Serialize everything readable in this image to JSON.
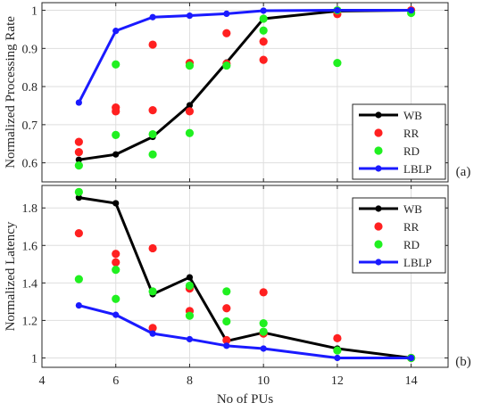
{
  "chart_data": [
    {
      "type": "line",
      "panel_label": "(a)",
      "xlabel": "",
      "ylabel": "Normalized Processing Rate",
      "xlim": [
        4,
        15
      ],
      "ylim": [
        0.55,
        1.02
      ],
      "xticks": [
        4,
        6,
        8,
        10,
        12,
        14
      ],
      "yticks": [
        0.6,
        0.7,
        0.8,
        0.9,
        1
      ],
      "ytick_labels": [
        "0.6",
        "0.7",
        "0.8",
        "0.9",
        "1"
      ],
      "show_xtick_labels": false,
      "grid": true,
      "legend_position": "lower-right",
      "series": [
        {
          "name": "WB",
          "style": "line-marker",
          "color": "#000000",
          "points": [
            [
              5,
              0.608
            ],
            [
              6,
              0.622
            ],
            [
              7,
              0.668
            ],
            [
              8,
              0.751
            ],
            [
              9,
              0.863
            ],
            [
              10,
              0.978
            ],
            [
              12,
              0.998
            ],
            [
              14,
              1.0
            ]
          ]
        },
        {
          "name": "RR",
          "style": "scatter",
          "color": "#ff2020",
          "points": [
            [
              5,
              0.655
            ],
            [
              5,
              0.628
            ],
            [
              6,
              0.745
            ],
            [
              6,
              0.735
            ],
            [
              7,
              0.91
            ],
            [
              7,
              0.738
            ],
            [
              8,
              0.862
            ],
            [
              8,
              0.735
            ],
            [
              9,
              0.94
            ],
            [
              9,
              0.86
            ],
            [
              10,
              0.918
            ],
            [
              10,
              0.87
            ],
            [
              12,
              0.99
            ],
            [
              14,
              1.0
            ]
          ]
        },
        {
          "name": "RD",
          "style": "scatter",
          "color": "#20f020",
          "points": [
            [
              5,
              0.593
            ],
            [
              6,
              0.858
            ],
            [
              6,
              0.673
            ],
            [
              7,
              0.675
            ],
            [
              7,
              0.622
            ],
            [
              8,
              0.855
            ],
            [
              8,
              0.678
            ],
            [
              9,
              0.855
            ],
            [
              10,
              0.978
            ],
            [
              10,
              0.947
            ],
            [
              12,
              0.862
            ],
            [
              12,
              1.0
            ],
            [
              14,
              0.993
            ]
          ]
        },
        {
          "name": "LBLP",
          "style": "line-marker",
          "color": "#1a1aff",
          "points": [
            [
              5,
              0.758
            ],
            [
              6,
              0.946
            ],
            [
              7,
              0.982
            ],
            [
              8,
              0.986
            ],
            [
              9,
              0.991
            ],
            [
              10,
              0.999
            ],
            [
              12,
              1.0
            ],
            [
              14,
              1.0
            ]
          ]
        }
      ]
    },
    {
      "type": "line",
      "panel_label": "(b)",
      "xlabel": "No of PUs",
      "ylabel": "Normalized Latency",
      "xlim": [
        4,
        15
      ],
      "ylim": [
        0.95,
        1.92
      ],
      "xticks": [
        4,
        6,
        8,
        10,
        12,
        14
      ],
      "xtick_labels": [
        "4",
        "6",
        "8",
        "10",
        "12",
        "14"
      ],
      "yticks": [
        1,
        1.2,
        1.4,
        1.6,
        1.8
      ],
      "ytick_labels": [
        "1",
        "1.2",
        "1.4",
        "1.6",
        "1.8"
      ],
      "show_xtick_labels": true,
      "grid": true,
      "legend_position": "upper-right",
      "series": [
        {
          "name": "WB",
          "style": "line-marker",
          "color": "#000000",
          "points": [
            [
              5,
              1.855
            ],
            [
              6,
              1.825
            ],
            [
              7,
              1.34
            ],
            [
              8,
              1.43
            ],
            [
              9,
              1.09
            ],
            [
              10,
              1.135
            ],
            [
              12,
              1.05
            ],
            [
              14,
              1.0
            ]
          ]
        },
        {
          "name": "RR",
          "style": "scatter",
          "color": "#ff2020",
          "points": [
            [
              5,
              1.665
            ],
            [
              6,
              1.555
            ],
            [
              6,
              1.51
            ],
            [
              7,
              1.585
            ],
            [
              7,
              1.16
            ],
            [
              8,
              1.37
            ],
            [
              8,
              1.25
            ],
            [
              9,
              1.265
            ],
            [
              9,
              1.095
            ],
            [
              10,
              1.35
            ],
            [
              10,
              1.13
            ],
            [
              12,
              1.105
            ],
            [
              14,
              1.0
            ]
          ]
        },
        {
          "name": "RD",
          "style": "scatter",
          "color": "#20f020",
          "points": [
            [
              5,
              1.885
            ],
            [
              5,
              1.42
            ],
            [
              6,
              1.47
            ],
            [
              6,
              1.315
            ],
            [
              7,
              1.355
            ],
            [
              8,
              1.385
            ],
            [
              8,
              1.225
            ],
            [
              9,
              1.355
            ],
            [
              9,
              1.195
            ],
            [
              10,
              1.185
            ],
            [
              10,
              1.14
            ],
            [
              12,
              1.04
            ],
            [
              14,
              1.0
            ]
          ]
        },
        {
          "name": "LBLP",
          "style": "line-marker",
          "color": "#1a1aff",
          "points": [
            [
              5,
              1.28
            ],
            [
              6,
              1.23
            ],
            [
              7,
              1.13
            ],
            [
              8,
              1.1
            ],
            [
              9,
              1.065
            ],
            [
              10,
              1.05
            ],
            [
              12,
              1.0
            ],
            [
              14,
              1.0
            ]
          ]
        }
      ]
    }
  ]
}
